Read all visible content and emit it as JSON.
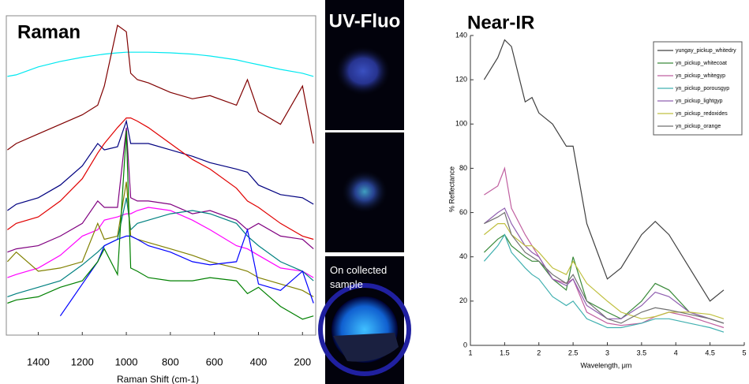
{
  "chart_data": [
    {
      "type": "line",
      "title": "Raman",
      "x_label": "Raman Shift (cm-1)",
      "x": [
        1540,
        1500,
        1400,
        1300,
        1200,
        1130,
        1100,
        1040,
        1000,
        980,
        950,
        900,
        800,
        700,
        620,
        500,
        450,
        400,
        300,
        200,
        150
      ],
      "xlim": [
        1545,
        140
      ],
      "xticks": [
        1400,
        1200,
        1000,
        800,
        600,
        400,
        200
      ],
      "ylim": [
        0,
        100
      ],
      "series": [
        {
          "color": "#00e8f0",
          "values": [
            81,
            81.5,
            84,
            85.7,
            87,
            87.7,
            88,
            88.4,
            88.6,
            88.6,
            88.6,
            88.6,
            88.4,
            88,
            87.4,
            86.2,
            85.4,
            84.7,
            83.2,
            82,
            81
          ]
        },
        {
          "color": "#800000",
          "values": [
            58,
            60,
            63,
            66,
            69,
            72,
            78,
            97,
            95,
            82,
            80,
            79,
            76,
            74,
            75,
            72,
            80,
            70,
            66,
            78,
            60
          ]
        },
        {
          "color": "#000080",
          "values": [
            39,
            41,
            43,
            47,
            53,
            60,
            58,
            59,
            67,
            60,
            60,
            60,
            58,
            56,
            54,
            52,
            51,
            47,
            44,
            43,
            41
          ]
        },
        {
          "color": "#e00000",
          "values": [
            33,
            35,
            37,
            42,
            49,
            57,
            60,
            65,
            68,
            68,
            67,
            65,
            60,
            55,
            52,
            46,
            42,
            40,
            35,
            31,
            30
          ]
        },
        {
          "color": "#800080",
          "values": [
            26,
            27,
            28,
            31,
            35,
            42,
            40,
            40,
            65,
            43,
            42,
            42,
            41,
            38,
            39,
            36,
            33,
            35,
            31,
            30,
            27
          ]
        },
        {
          "color": "#ff00ff",
          "values": [
            18,
            19,
            21,
            25,
            31,
            33,
            36,
            37,
            38,
            38,
            39,
            40,
            39,
            36,
            33,
            28,
            27,
            25,
            21,
            20,
            18
          ]
        },
        {
          "color": "#008080",
          "values": [
            12,
            13,
            15,
            17,
            22,
            26,
            28,
            30,
            43,
            33,
            35,
            36,
            38,
            39,
            38,
            35,
            31,
            28,
            23,
            20,
            17
          ]
        },
        {
          "color": "#808000",
          "values": [
            23,
            26,
            20,
            21,
            23,
            35,
            30,
            31,
            48,
            31,
            30,
            29,
            27,
            25,
            23,
            21,
            20,
            18,
            16,
            14,
            12
          ]
        },
        {
          "color": "#0000ff",
          "values": [
            null,
            null,
            null,
            6,
            16,
            23,
            28,
            30,
            31,
            31,
            30,
            28,
            26,
            23,
            22,
            23,
            33,
            16,
            14,
            20,
            10
          ]
        },
        {
          "color": "#008000",
          "values": [
            10,
            11,
            12,
            15,
            17,
            23,
            27,
            19,
            64,
            21,
            20,
            18,
            17,
            17,
            18,
            17,
            13,
            15,
            9,
            5,
            6
          ]
        }
      ]
    },
    {
      "type": "line",
      "title": "Near-IR",
      "x_label": "Wavelength, μm",
      "y_label": "% Reflectance",
      "x": [
        1.2,
        1.4,
        1.5,
        1.6,
        1.8,
        1.9,
        2.0,
        2.2,
        2.4,
        2.5,
        2.7,
        3.0,
        3.2,
        3.5,
        3.7,
        3.9,
        4.2,
        4.5,
        4.7
      ],
      "xlim": [
        1,
        5
      ],
      "xticks": [
        1,
        1.5,
        2,
        2.5,
        3,
        3.5,
        4,
        4.5,
        5
      ],
      "ylim": [
        0,
        140
      ],
      "yticks": [
        0,
        20,
        40,
        60,
        80,
        100,
        120,
        140
      ],
      "legend": "upper right",
      "series": [
        {
          "name": "yungay_pickup_whitedry",
          "color": "#404040",
          "values": [
            120,
            130,
            138,
            135,
            110,
            112,
            105,
            100,
            90,
            90,
            55,
            30,
            35,
            50,
            56,
            50,
            35,
            20,
            25
          ]
        },
        {
          "name": "yn_pickup_whitecoat",
          "color": "#3a8a3a",
          "values": [
            42,
            48,
            50,
            45,
            40,
            38,
            38,
            30,
            25,
            40,
            20,
            15,
            12,
            20,
            28,
            25,
            15,
            12,
            10
          ]
        },
        {
          "name": "yn_pickup_whitegyp",
          "color": "#c060a0",
          "values": [
            68,
            72,
            80,
            62,
            50,
            45,
            40,
            30,
            28,
            30,
            15,
            10,
            9,
            10,
            13,
            15,
            13,
            10,
            8
          ]
        },
        {
          "name": "yn_pickup_porousgyp",
          "color": "#40b0b0",
          "values": [
            38,
            45,
            50,
            42,
            35,
            32,
            30,
            22,
            18,
            20,
            12,
            8,
            8,
            10,
            12,
            12,
            10,
            8,
            6
          ]
        },
        {
          "name": "yn_pickup_lightgyp",
          "color": "#9060b0",
          "values": [
            55,
            60,
            62,
            55,
            45,
            42,
            40,
            30,
            27,
            30,
            18,
            12,
            12,
            18,
            24,
            22,
            15,
            12,
            10
          ]
        },
        {
          "name": "yn_pickup_redoxides",
          "color": "#c0c040",
          "values": [
            50,
            55,
            55,
            50,
            45,
            45,
            42,
            35,
            32,
            38,
            28,
            20,
            15,
            12,
            13,
            15,
            15,
            14,
            12
          ]
        },
        {
          "name": "yn_pickup_orange",
          "color": "#707070",
          "values": [
            55,
            58,
            60,
            50,
            42,
            40,
            38,
            32,
            28,
            32,
            20,
            12,
            10,
            15,
            17,
            16,
            14,
            12,
            10
          ]
        }
      ]
    }
  ],
  "uv_fluo": {
    "title": "UV-Fluo",
    "caption": "On collected sample"
  }
}
